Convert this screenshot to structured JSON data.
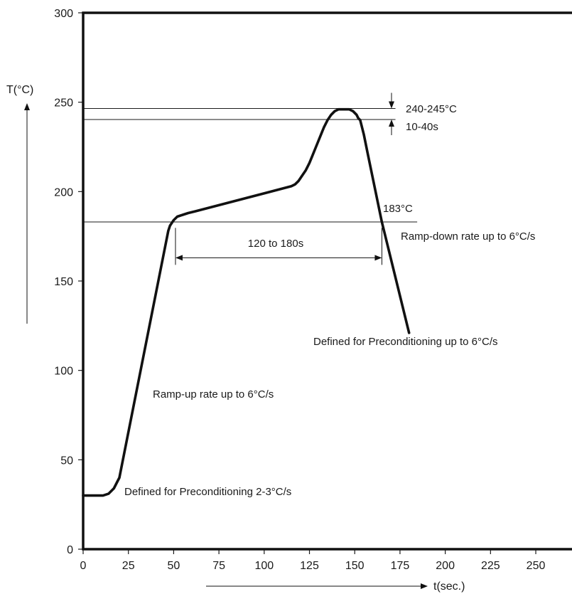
{
  "chart_data": {
    "type": "line",
    "title": "",
    "xlabel": "t(sec.)",
    "ylabel": "T(°C)",
    "xlim": [
      0,
      270
    ],
    "ylim": [
      0,
      300
    ],
    "x_ticks": [
      0,
      25,
      50,
      75,
      100,
      125,
      150,
      175,
      200,
      225,
      250
    ],
    "y_ticks": [
      0,
      50,
      100,
      150,
      200,
      250,
      300
    ],
    "grid": false,
    "series": [
      {
        "x": [
          0,
          11,
          14,
          17,
          19,
          20,
          47,
          48,
          50,
          52,
          55,
          58,
          62,
          115,
          117,
          119,
          121,
          123,
          125,
          127,
          129,
          131,
          133,
          135,
          137,
          139,
          141,
          143,
          145,
          147,
          149,
          151,
          152,
          153,
          155,
          157,
          165,
          180
        ],
        "y": [
          30,
          30,
          31,
          34,
          38,
          40,
          178,
          181,
          184,
          186,
          187,
          188,
          189,
          203,
          204,
          206,
          209,
          212,
          216,
          221,
          226,
          231,
          236,
          240,
          243,
          245,
          246,
          246,
          246,
          246,
          245,
          243,
          241,
          240,
          232,
          222,
          183,
          121
        ]
      }
    ],
    "reference_lines": [
      {
        "y": 246.5,
        "x_end": 172.5
      },
      {
        "y": 240.3,
        "x_end": 172.5
      },
      {
        "y": 183,
        "x_end": 184.5
      }
    ],
    "annotations": {
      "peak_temp": "240-245°C",
      "peak_time": "10-40s",
      "liquidus_temp": "183°C",
      "liquidus_duration": "120 to 180s",
      "ramp_down": "Ramp-down rate up to 6°C/s",
      "cool_precond": "Defined for Preconditioning up to 6°C/s",
      "ramp_up": "Ramp-up rate up to 6°C/s",
      "preheat_precond": "Defined for Preconditioning 2-3°C/s"
    },
    "duration_marker": {
      "x_start": 51,
      "x_end": 165,
      "y": 163
    }
  }
}
